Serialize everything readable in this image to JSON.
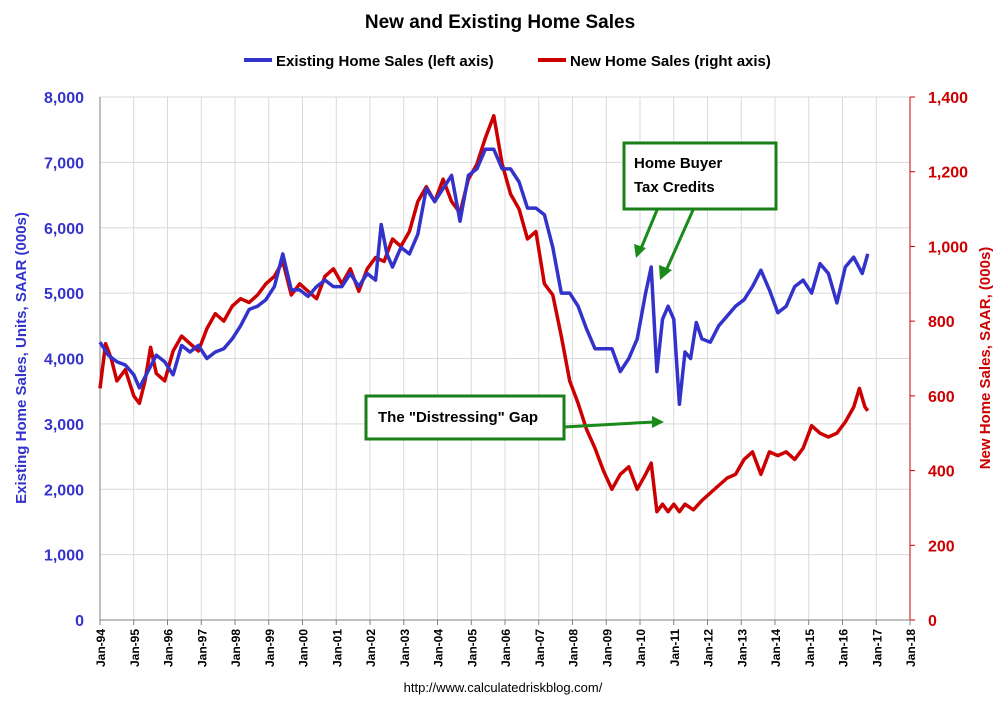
{
  "colors": {
    "existing": "#3333CC",
    "new": "#CC0000",
    "annot_border": "#1A7F1A",
    "grid": "#D9D9D9"
  },
  "chart_data": {
    "type": "line",
    "title": "New and Existing Home Sales",
    "legend_position": "top",
    "grid": true,
    "source": "http://www.calculatedriskblog.com/",
    "x_axis": {
      "ticks": [
        "Jan-94",
        "Jan-95",
        "Jan-96",
        "Jan-97",
        "Jan-98",
        "Jan-99",
        "Jan-00",
        "Jan-01",
        "Jan-02",
        "Jan-03",
        "Jan-04",
        "Jan-05",
        "Jan-06",
        "Jan-07",
        "Jan-08",
        "Jan-09",
        "Jan-10",
        "Jan-11",
        "Jan-12",
        "Jan-13",
        "Jan-14",
        "Jan-15",
        "Jan-16",
        "Jan-17",
        "Jan-18"
      ],
      "range": [
        "1994-01",
        "2018-01"
      ]
    },
    "y_left": {
      "label": "Existing Home Sales, Units, SAAR (000s)",
      "range": [
        0,
        8000
      ],
      "ticks": [
        "0",
        "1,000",
        "2,000",
        "3,000",
        "4,000",
        "5,000",
        "6,000",
        "7,000",
        "8,000"
      ]
    },
    "y_right": {
      "label": "New Home Sales, SAAR, (000s)",
      "range": [
        0,
        1400
      ],
      "ticks": [
        "0",
        "200",
        "400",
        "600",
        "800",
        "1,000",
        "1,200",
        "1,400"
      ]
    },
    "series": [
      {
        "name": "Existing Home Sales (left axis)",
        "axis": "left",
        "color": "#3333CC",
        "points": [
          [
            "1994-01",
            4250
          ],
          [
            "1994-04",
            4050
          ],
          [
            "1994-07",
            3950
          ],
          [
            "1994-10",
            3900
          ],
          [
            "1995-01",
            3750
          ],
          [
            "1995-03",
            3550
          ],
          [
            "1995-06",
            3800
          ],
          [
            "1995-09",
            4050
          ],
          [
            "1995-12",
            3950
          ],
          [
            "1996-03",
            3750
          ],
          [
            "1996-06",
            4200
          ],
          [
            "1996-09",
            4100
          ],
          [
            "1996-12",
            4200
          ],
          [
            "1997-03",
            4000
          ],
          [
            "1997-06",
            4100
          ],
          [
            "1997-09",
            4150
          ],
          [
            "1997-12",
            4300
          ],
          [
            "1998-03",
            4500
          ],
          [
            "1998-06",
            4750
          ],
          [
            "1998-09",
            4800
          ],
          [
            "1998-12",
            4900
          ],
          [
            "1999-03",
            5100
          ],
          [
            "1999-06",
            5600
          ],
          [
            "1999-09",
            5050
          ],
          [
            "1999-12",
            5050
          ],
          [
            "2000-03",
            4950
          ],
          [
            "2000-06",
            5100
          ],
          [
            "2000-09",
            5200
          ],
          [
            "2000-12",
            5100
          ],
          [
            "2001-03",
            5100
          ],
          [
            "2001-06",
            5300
          ],
          [
            "2001-09",
            5100
          ],
          [
            "2001-12",
            5300
          ],
          [
            "2002-03",
            5200
          ],
          [
            "2002-05",
            6050
          ],
          [
            "2002-07",
            5600
          ],
          [
            "2002-09",
            5400
          ],
          [
            "2002-12",
            5700
          ],
          [
            "2003-03",
            5600
          ],
          [
            "2003-06",
            5900
          ],
          [
            "2003-09",
            6600
          ],
          [
            "2003-12",
            6400
          ],
          [
            "2004-03",
            6600
          ],
          [
            "2004-06",
            6800
          ],
          [
            "2004-09",
            6100
          ],
          [
            "2004-12",
            6800
          ],
          [
            "2005-03",
            6900
          ],
          [
            "2005-06",
            7200
          ],
          [
            "2005-09",
            7200
          ],
          [
            "2005-12",
            6900
          ],
          [
            "2006-03",
            6900
          ],
          [
            "2006-06",
            6700
          ],
          [
            "2006-09",
            6300
          ],
          [
            "2006-12",
            6300
          ],
          [
            "2007-03",
            6200
          ],
          [
            "2007-06",
            5700
          ],
          [
            "2007-09",
            5000
          ],
          [
            "2007-12",
            5000
          ],
          [
            "2008-03",
            4800
          ],
          [
            "2008-06",
            4450
          ],
          [
            "2008-09",
            4150
          ],
          [
            "2008-12",
            4150
          ],
          [
            "2009-03",
            4150
          ],
          [
            "2009-06",
            3800
          ],
          [
            "2009-09",
            4000
          ],
          [
            "2009-12",
            4300
          ],
          [
            "2010-03",
            5000
          ],
          [
            "2010-05",
            5400
          ],
          [
            "2010-07",
            3800
          ],
          [
            "2010-09",
            4600
          ],
          [
            "2010-11",
            4800
          ],
          [
            "2011-01",
            4600
          ],
          [
            "2011-03",
            3300
          ],
          [
            "2011-05",
            4100
          ],
          [
            "2011-07",
            4000
          ],
          [
            "2011-09",
            4550
          ],
          [
            "2011-11",
            4300
          ],
          [
            "2012-02",
            4250
          ],
          [
            "2012-05",
            4500
          ],
          [
            "2012-08",
            4650
          ],
          [
            "2012-11",
            4800
          ],
          [
            "2013-02",
            4900
          ],
          [
            "2013-05",
            5100
          ],
          [
            "2013-08",
            5350
          ],
          [
            "2013-11",
            5050
          ],
          [
            "2014-02",
            4700
          ],
          [
            "2014-05",
            4800
          ],
          [
            "2014-08",
            5100
          ],
          [
            "2014-11",
            5200
          ],
          [
            "2015-02",
            5000
          ],
          [
            "2015-05",
            5450
          ],
          [
            "2015-08",
            5300
          ],
          [
            "2015-11",
            4850
          ],
          [
            "2016-02",
            5400
          ],
          [
            "2016-05",
            5550
          ],
          [
            "2016-08",
            5300
          ],
          [
            "2016-10",
            5600
          ]
        ]
      },
      {
        "name": "New Home Sales (right axis)",
        "axis": "right",
        "color": "#CC0000",
        "points": [
          [
            "1994-01",
            620
          ],
          [
            "1994-03",
            740
          ],
          [
            "1994-05",
            700
          ],
          [
            "1994-07",
            640
          ],
          [
            "1994-10",
            670
          ],
          [
            "1995-01",
            600
          ],
          [
            "1995-03",
            580
          ],
          [
            "1995-05",
            640
          ],
          [
            "1995-07",
            730
          ],
          [
            "1995-09",
            660
          ],
          [
            "1995-12",
            640
          ],
          [
            "1996-03",
            720
          ],
          [
            "1996-06",
            760
          ],
          [
            "1996-09",
            740
          ],
          [
            "1996-12",
            720
          ],
          [
            "1997-03",
            780
          ],
          [
            "1997-06",
            820
          ],
          [
            "1997-09",
            800
          ],
          [
            "1997-12",
            840
          ],
          [
            "1998-03",
            860
          ],
          [
            "1998-06",
            850
          ],
          [
            "1998-09",
            870
          ],
          [
            "1998-12",
            900
          ],
          [
            "1999-03",
            920
          ],
          [
            "1999-06",
            960
          ],
          [
            "1999-09",
            870
          ],
          [
            "1999-12",
            900
          ],
          [
            "2000-03",
            880
          ],
          [
            "2000-06",
            860
          ],
          [
            "2000-09",
            920
          ],
          [
            "2000-12",
            940
          ],
          [
            "2001-03",
            900
          ],
          [
            "2001-06",
            940
          ],
          [
            "2001-09",
            880
          ],
          [
            "2001-12",
            940
          ],
          [
            "2002-03",
            970
          ],
          [
            "2002-06",
            960
          ],
          [
            "2002-09",
            1020
          ],
          [
            "2002-12",
            1000
          ],
          [
            "2003-03",
            1040
          ],
          [
            "2003-06",
            1120
          ],
          [
            "2003-09",
            1160
          ],
          [
            "2003-12",
            1120
          ],
          [
            "2004-03",
            1180
          ],
          [
            "2004-06",
            1120
          ],
          [
            "2004-09",
            1090
          ],
          [
            "2004-12",
            1180
          ],
          [
            "2005-03",
            1220
          ],
          [
            "2005-06",
            1290
          ],
          [
            "2005-09",
            1350
          ],
          [
            "2005-12",
            1220
          ],
          [
            "2006-03",
            1140
          ],
          [
            "2006-06",
            1100
          ],
          [
            "2006-09",
            1020
          ],
          [
            "2006-12",
            1040
          ],
          [
            "2007-03",
            900
          ],
          [
            "2007-06",
            870
          ],
          [
            "2007-09",
            760
          ],
          [
            "2007-12",
            640
          ],
          [
            "2008-03",
            580
          ],
          [
            "2008-06",
            510
          ],
          [
            "2008-09",
            460
          ],
          [
            "2008-12",
            400
          ],
          [
            "2009-03",
            350
          ],
          [
            "2009-06",
            390
          ],
          [
            "2009-09",
            410
          ],
          [
            "2009-12",
            350
          ],
          [
            "2010-03",
            390
          ],
          [
            "2010-05",
            420
          ],
          [
            "2010-07",
            290
          ],
          [
            "2010-09",
            310
          ],
          [
            "2010-11",
            290
          ],
          [
            "2011-01",
            310
          ],
          [
            "2011-03",
            290
          ],
          [
            "2011-05",
            310
          ],
          [
            "2011-08",
            295
          ],
          [
            "2011-11",
            320
          ],
          [
            "2012-02",
            340
          ],
          [
            "2012-05",
            360
          ],
          [
            "2012-08",
            380
          ],
          [
            "2012-11",
            390
          ],
          [
            "2013-02",
            430
          ],
          [
            "2013-05",
            450
          ],
          [
            "2013-08",
            390
          ],
          [
            "2013-11",
            450
          ],
          [
            "2014-02",
            440
          ],
          [
            "2014-05",
            450
          ],
          [
            "2014-08",
            430
          ],
          [
            "2014-11",
            460
          ],
          [
            "2015-02",
            520
          ],
          [
            "2015-05",
            500
          ],
          [
            "2015-08",
            490
          ],
          [
            "2015-11",
            500
          ],
          [
            "2016-02",
            530
          ],
          [
            "2016-05",
            570
          ],
          [
            "2016-07",
            620
          ],
          [
            "2016-09",
            570
          ],
          [
            "2016-10",
            560
          ]
        ]
      }
    ],
    "annotations": {
      "tax_credit": "Home Buyer\nTax Credits",
      "gap": "The \"Distressing\" Gap"
    }
  }
}
